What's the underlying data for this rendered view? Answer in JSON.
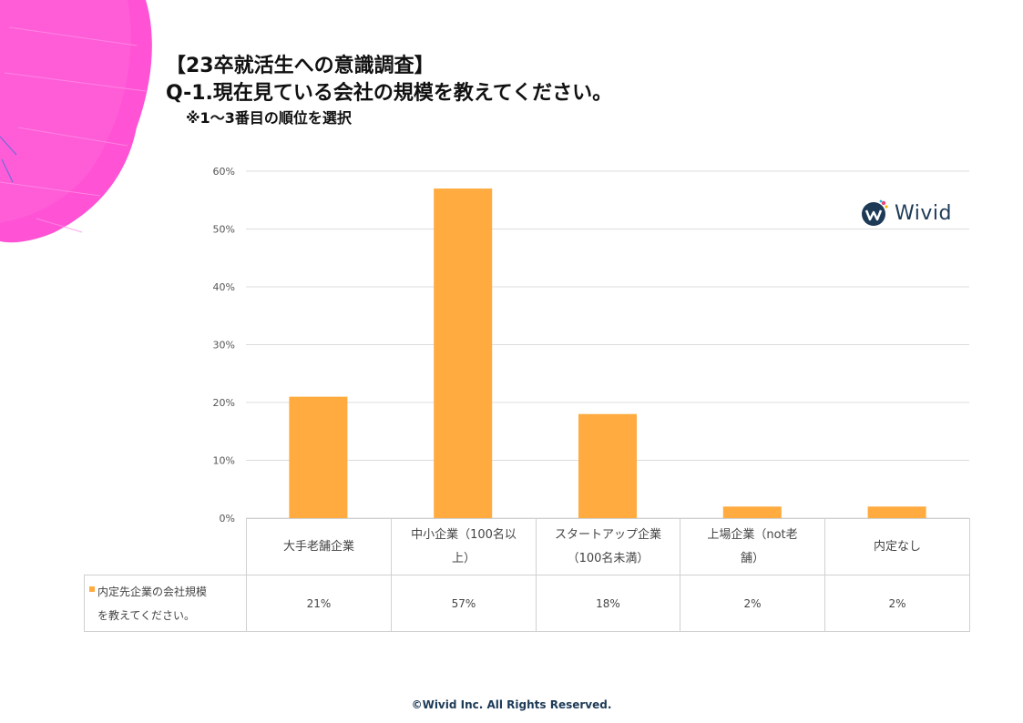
{
  "title": {
    "line1": "【23卒就活生への意識調査】",
    "line2": "Q-1.現在見ている会社の規模を教えてください。",
    "line3": "※1～3番目の順位を選択"
  },
  "logo": {
    "text": "Wivid"
  },
  "colors": {
    "bar": "#ffab40",
    "grid": "#dcdcdc",
    "decor": "#ff3fd0"
  },
  "chart_data": {
    "type": "bar",
    "categories": [
      "大手老舗企業",
      "中小企業（100名以上）",
      "スタートアップ企業（100名未満）",
      "上場企業（not老舗）",
      "内定なし"
    ],
    "series": [
      {
        "name": "内定先企業の会社規模を教えてください。",
        "values": [
          21,
          57,
          18,
          2,
          2
        ]
      }
    ],
    "value_labels": [
      "21%",
      "57%",
      "18%",
      "2%",
      "2%"
    ],
    "ylim": [
      0,
      60
    ],
    "yticks": [
      "0%",
      "10%",
      "20%",
      "30%",
      "40%",
      "50%",
      "60%"
    ],
    "grid": true,
    "legend": "data-table"
  },
  "table": {
    "categories_display": [
      [
        "大手老舗企業"
      ],
      [
        "中小企業（100名以",
        "上）"
      ],
      [
        "スタートアップ企業",
        "（100名未満）"
      ],
      [
        "上場企業（not老",
        "舗）"
      ],
      [
        "内定なし"
      ]
    ],
    "legend_lines": [
      "内定先企業の会社規模",
      "を教えてください。"
    ]
  },
  "footer": "©Wivid Inc. All Rights Reserved."
}
